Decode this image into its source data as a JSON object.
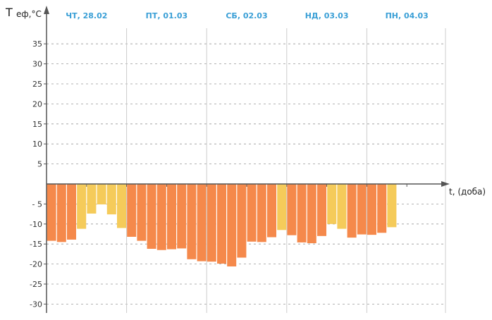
{
  "chart_data": {
    "type": "bar",
    "ylabel_main": "T",
    "ylabel_sub": "еф,°C",
    "xlabel": "t, (доба)",
    "ylim": [
      -33,
      38
    ],
    "yticks": [
      35,
      30,
      25,
      20,
      15,
      10,
      5,
      -5,
      -10,
      -15,
      -20,
      -25,
      -30
    ],
    "ytick_labels": [
      "35",
      "30",
      "25",
      "20",
      "15",
      "10",
      "5",
      "- 5",
      "-10",
      "-15",
      "-20",
      "-25",
      "-30"
    ],
    "days": [
      {
        "label": "ЧТ, 28.02"
      },
      {
        "label": "ПТ, 01.03"
      },
      {
        "label": "СБ, 02.03"
      },
      {
        "label": "НД, 03.03"
      },
      {
        "label": "ПН, 04.03"
      }
    ],
    "bars_per_day": 8,
    "values": [
      -14.2,
      -14.5,
      -13.9,
      -11.2,
      -7.4,
      -5.1,
      -7.6,
      -11.0,
      -13.2,
      -14.2,
      -16.2,
      -16.5,
      -16.3,
      -16.1,
      -18.8,
      -19.3,
      -19.4,
      -19.9,
      -20.6,
      -18.4,
      -14.4,
      -14.5,
      -13.3,
      -11.5,
      -12.8,
      -14.6,
      -14.8,
      -13.0,
      -10.0,
      -11.2,
      -13.4,
      -12.6,
      -12.7,
      -12.2,
      -10.8
    ],
    "categories": [
      "high",
      "high",
      "high",
      "low",
      "low",
      "low",
      "low",
      "low",
      "high",
      "high",
      "high",
      "high",
      "high",
      "high",
      "high",
      "high",
      "high",
      "high",
      "high",
      "high",
      "high",
      "high",
      "high",
      "low",
      "high",
      "high",
      "high",
      "high",
      "low",
      "low",
      "high",
      "high",
      "high",
      "high",
      "low"
    ],
    "colors": {
      "high": "#f5894b",
      "low": "#f5cb5a",
      "day_label": "#3a9fd6",
      "grid": "#999999",
      "day_separator": "#cccccc",
      "axis": "#555555"
    }
  }
}
